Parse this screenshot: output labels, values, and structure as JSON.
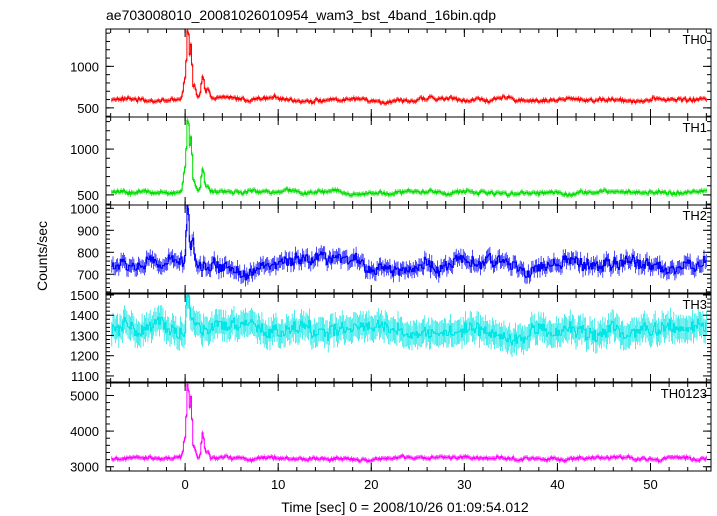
{
  "colors": {
    "axis": "#000000",
    "th0": "#ff0000",
    "th1": "#00dd00",
    "th2": "#0000ff",
    "th3": "#00e5e5",
    "th0123": "#ff00ff"
  },
  "chart_data": {
    "type": "line",
    "title": "ae703008010_20081026010954_wam3_bst_4band_16bin.qdp",
    "xlabel": "Time [sec] 0 = 2008/10/26 01:09:54.012",
    "ylabel": "Counts/sec",
    "xlim": [
      -8.5,
      56.5
    ],
    "x_ticks": [
      0,
      10,
      20,
      30,
      40,
      50
    ],
    "x_tick_labels": [
      "0",
      "10",
      "20",
      "30",
      "40",
      "50"
    ],
    "x_minor_step": 2,
    "grid": false,
    "panels": [
      {
        "name": "TH0",
        "ylim": [
          390,
          1450
        ],
        "y_ticks": [
          500,
          1000
        ],
        "y_tick_labels": [
          "500",
          "1000"
        ],
        "y_minor_step": 100,
        "baseline": 600,
        "noise": 35,
        "err": 25,
        "color": "#ff0000",
        "events": [
          {
            "t": 0.0,
            "value": 850
          },
          {
            "t": 0.3,
            "value": 1450
          },
          {
            "t": 0.6,
            "value": 1250
          },
          {
            "t": 1.0,
            "value": 750
          },
          {
            "t": 1.9,
            "value": 850
          },
          {
            "t": 2.4,
            "value": 680
          }
        ]
      },
      {
        "name": "TH1",
        "ylim": [
          390,
          1350
        ],
        "y_ticks": [
          500,
          1000
        ],
        "y_tick_labels": [
          "500",
          "1000"
        ],
        "y_minor_step": 100,
        "baseline": 530,
        "noise": 30,
        "err": 25,
        "color": "#00dd00",
        "events": [
          {
            "t": 0.0,
            "value": 800
          },
          {
            "t": 0.3,
            "value": 1350
          },
          {
            "t": 0.6,
            "value": 1150
          },
          {
            "t": 1.0,
            "value": 650
          },
          {
            "t": 1.9,
            "value": 780
          },
          {
            "t": 2.4,
            "value": 600
          }
        ]
      },
      {
        "name": "TH2",
        "ylim": [
          615,
          1015
        ],
        "y_ticks": [
          700,
          800,
          900,
          1000
        ],
        "y_tick_labels": [
          "700",
          "800",
          "900",
          "1000"
        ],
        "y_minor_step": 20,
        "baseline": 740,
        "noise": 45,
        "err": 30,
        "color": "#0000ff",
        "events": [
          {
            "t": 0.3,
            "value": 1000
          },
          {
            "t": 0.8,
            "value": 860
          }
        ]
      },
      {
        "name": "TH3",
        "ylim": [
          1070,
          1505
        ],
        "y_ticks": [
          1100,
          1200,
          1300,
          1400,
          1500
        ],
        "y_tick_labels": [
          "1100",
          "1200",
          "1300",
          "1400",
          "1500"
        ],
        "y_minor_step": 20,
        "baseline": 1320,
        "noise": 55,
        "err": 60,
        "color": "#00e5e5",
        "events": [
          {
            "t": 0.3,
            "value": 1470
          }
        ]
      },
      {
        "name": "TH0123",
        "ylim": [
          2880,
          5350
        ],
        "y_ticks": [
          3000,
          4000,
          5000
        ],
        "y_tick_labels": [
          "3000",
          "4000",
          "5000"
        ],
        "y_minor_step": 200,
        "baseline": 3230,
        "noise": 70,
        "err": 60,
        "color": "#ff00ff",
        "events": [
          {
            "t": 0.0,
            "value": 3800
          },
          {
            "t": 0.3,
            "value": 5300
          },
          {
            "t": 0.6,
            "value": 4900
          },
          {
            "t": 1.0,
            "value": 3500
          },
          {
            "t": 1.9,
            "value": 3900
          },
          {
            "t": 2.4,
            "value": 3400
          }
        ]
      }
    ]
  }
}
